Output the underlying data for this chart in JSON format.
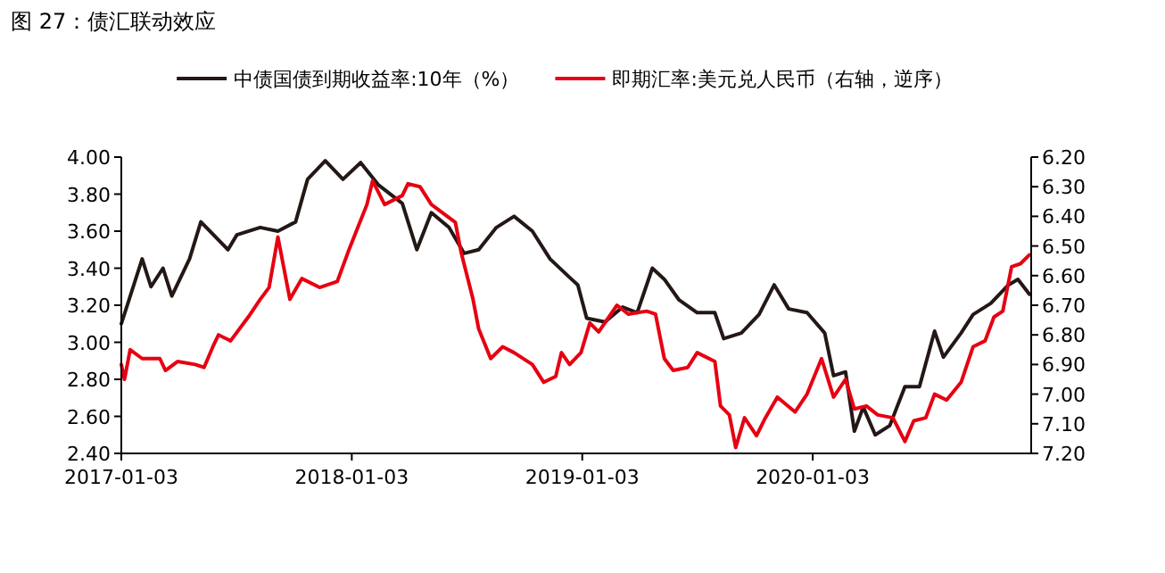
{
  "chart_data": {
    "type": "line",
    "title": "图 27：债汇联动效应",
    "legend": "top",
    "grid": false,
    "line_style": "solid",
    "marker": "none",
    "xlim": [
      "2017-01-03",
      "2020-12-14"
    ],
    "xticks": [
      "2017-01-03",
      "2018-01-03",
      "2019-01-03",
      "2020-01-03"
    ],
    "ylim": [
      2.4,
      4.0
    ],
    "yticks": [
      {
        "value": 2.4,
        "label": "2.40"
      },
      {
        "value": 2.6,
        "label": "2.60"
      },
      {
        "value": 2.8,
        "label": "2.80"
      },
      {
        "value": 3.0,
        "label": "3.00"
      },
      {
        "value": 3.2,
        "label": "3.20"
      },
      {
        "value": 3.4,
        "label": "3.40"
      },
      {
        "value": 3.6,
        "label": "3.60"
      },
      {
        "value": 3.8,
        "label": "3.80"
      },
      {
        "value": 4.0,
        "label": "4.00"
      }
    ],
    "y2lim": [
      7.2,
      6.2
    ],
    "y2ticks": [
      {
        "value": 6.2,
        "label": "6.20"
      },
      {
        "value": 6.3,
        "label": "6.30"
      },
      {
        "value": 6.4,
        "label": "6.40"
      },
      {
        "value": 6.5,
        "label": "6.50"
      },
      {
        "value": 6.6,
        "label": "6.60"
      },
      {
        "value": 6.7,
        "label": "6.70"
      },
      {
        "value": 6.8,
        "label": "6.80"
      },
      {
        "value": 6.9,
        "label": "6.90"
      },
      {
        "value": 7.0,
        "label": "7.00"
      },
      {
        "value": 7.1,
        "label": "7.10"
      },
      {
        "value": 7.2,
        "label": "7.20"
      }
    ],
    "series": [
      {
        "name": "中债国债到期收益率:10年（%）",
        "color": "#231815",
        "x": [
          "2017-01-03",
          "2017-02-05",
          "2017-02-19",
          "2017-03-10",
          "2017-03-24",
          "2017-04-21",
          "2017-05-09",
          "2017-06-21",
          "2017-07-05",
          "2017-08-11",
          "2017-09-08",
          "2017-10-06",
          "2017-10-25",
          "2017-11-22",
          "2017-12-20",
          "2018-01-17",
          "2018-02-14",
          "2018-03-24",
          "2018-04-16",
          "2018-05-09",
          "2018-06-06",
          "2018-06-30",
          "2018-07-23",
          "2018-08-20",
          "2018-09-17",
          "2018-10-16",
          "2018-11-13",
          "2018-12-14",
          "2018-12-27",
          "2019-01-10",
          "2019-02-08",
          "2019-03-08",
          "2019-03-31",
          "2019-04-24",
          "2019-05-13",
          "2019-06-05",
          "2019-07-04",
          "2019-08-01",
          "2019-08-15",
          "2019-09-12",
          "2019-10-10",
          "2019-11-03",
          "2019-11-26",
          "2019-12-25",
          "2020-01-22",
          "2020-02-05",
          "2020-02-24",
          "2020-03-09",
          "2020-03-23",
          "2020-04-11",
          "2020-05-04",
          "2020-05-28",
          "2020-06-20",
          "2020-07-14",
          "2020-07-28",
          "2020-08-25",
          "2020-09-13",
          "2020-10-11",
          "2020-11-08",
          "2020-11-23",
          "2020-12-11"
        ],
        "values": [
          3.1,
          3.45,
          3.3,
          3.4,
          3.25,
          3.45,
          3.65,
          3.5,
          3.58,
          3.62,
          3.6,
          3.65,
          3.88,
          3.98,
          3.88,
          3.97,
          3.85,
          3.75,
          3.5,
          3.7,
          3.62,
          3.48,
          3.5,
          3.62,
          3.68,
          3.6,
          3.45,
          3.35,
          3.31,
          3.13,
          3.11,
          3.19,
          3.16,
          3.4,
          3.34,
          3.23,
          3.16,
          3.16,
          3.02,
          3.05,
          3.15,
          3.31,
          3.18,
          3.16,
          3.05,
          2.82,
          2.84,
          2.52,
          2.65,
          2.5,
          2.55,
          2.76,
          2.76,
          3.06,
          2.92,
          3.05,
          3.15,
          3.21,
          3.31,
          3.34,
          3.26
        ]
      },
      {
        "name": "即期汇率:美元兑人民币（右轴，逆序）",
        "color": "#e60012",
        "axis": "y2",
        "x": [
          "2017-01-03",
          "2017-01-08",
          "2017-01-17",
          "2017-02-05",
          "2017-03-05",
          "2017-03-14",
          "2017-04-02",
          "2017-04-30",
          "2017-05-14",
          "2017-05-28",
          "2017-06-06",
          "2017-06-25",
          "2017-07-23",
          "2017-08-11",
          "2017-08-25",
          "2017-09-08",
          "2017-09-27",
          "2017-10-16",
          "2017-11-13",
          "2017-12-11",
          "2017-12-30",
          "2018-01-27",
          "2018-02-05",
          "2018-02-24",
          "2018-03-24",
          "2018-04-02",
          "2018-04-21",
          "2018-05-09",
          "2018-06-16",
          "2018-06-25",
          "2018-07-14",
          "2018-07-23",
          "2018-08-11",
          "2018-08-30",
          "2018-09-17",
          "2018-10-16",
          "2018-11-03",
          "2018-11-22",
          "2018-12-01",
          "2018-12-14",
          "2019-01-01",
          "2019-01-15",
          "2019-01-29",
          "2019-02-27",
          "2019-03-17",
          "2019-04-15",
          "2019-04-29",
          "2019-05-13",
          "2019-05-27",
          "2019-06-19",
          "2019-07-04",
          "2019-08-01",
          "2019-08-10",
          "2019-08-24",
          "2019-09-03",
          "2019-09-17",
          "2019-10-06",
          "2019-10-20",
          "2019-11-08",
          "2019-12-06",
          "2019-12-25",
          "2020-01-17",
          "2020-02-05",
          "2020-02-24",
          "2020-03-09",
          "2020-03-28",
          "2020-04-15",
          "2020-05-09",
          "2020-05-28",
          "2020-06-11",
          "2020-06-30",
          "2020-07-14",
          "2020-08-02",
          "2020-08-25",
          "2020-09-13",
          "2020-10-02",
          "2020-10-16",
          "2020-10-30",
          "2020-11-13",
          "2020-11-27",
          "2020-12-11"
        ],
        "values": [
          6.9,
          6.95,
          6.85,
          6.88,
          6.88,
          6.92,
          6.89,
          6.9,
          6.91,
          6.84,
          6.8,
          6.82,
          6.74,
          6.68,
          6.64,
          6.47,
          6.68,
          6.61,
          6.64,
          6.62,
          6.51,
          6.36,
          6.28,
          6.36,
          6.33,
          6.29,
          6.3,
          6.36,
          6.42,
          6.52,
          6.68,
          6.78,
          6.88,
          6.84,
          6.86,
          6.9,
          6.96,
          6.94,
          6.86,
          6.9,
          6.86,
          6.76,
          6.79,
          6.7,
          6.73,
          6.72,
          6.73,
          6.88,
          6.92,
          6.91,
          6.86,
          6.89,
          7.04,
          7.07,
          7.18,
          7.08,
          7.14,
          7.08,
          7.01,
          7.06,
          7.0,
          6.88,
          7.01,
          6.95,
          7.05,
          7.04,
          7.07,
          7.08,
          7.16,
          7.09,
          7.08,
          7.0,
          7.02,
          6.96,
          6.84,
          6.82,
          6.74,
          6.72,
          6.57,
          6.56,
          6.53
        ]
      }
    ]
  }
}
